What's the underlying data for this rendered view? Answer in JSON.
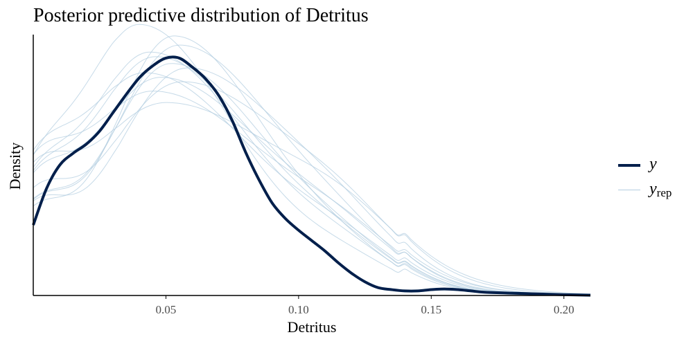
{
  "chart_data": {
    "type": "line",
    "title": "Posterior predictive distribution of Detritus",
    "xlabel": "Detritus",
    "ylabel": "Density",
    "xlim": [
      0.0,
      0.21
    ],
    "ylim": [
      0,
      20
    ],
    "x_ticks": [
      0.05,
      0.1,
      0.15,
      0.2
    ],
    "x_tick_labels": [
      "0.05",
      "0.10",
      "0.15",
      "0.20"
    ],
    "y_ticks_shown": false,
    "grid": false,
    "legend_position": "right",
    "legend": [
      {
        "label": "y",
        "role": "observed"
      },
      {
        "label": "y",
        "subscript": "rep",
        "role": "replicated"
      }
    ],
    "colors": {
      "y": "#011f4b",
      "yrep": "#b3cde0",
      "axis": "#000000",
      "tick_text": "#4d4d4d"
    },
    "series": [
      {
        "name": "y",
        "x": [
          0.0,
          0.005,
          0.01,
          0.015,
          0.02,
          0.025,
          0.03,
          0.035,
          0.04,
          0.045,
          0.05,
          0.055,
          0.06,
          0.065,
          0.07,
          0.075,
          0.08,
          0.085,
          0.09,
          0.095,
          0.1,
          0.105,
          0.11,
          0.115,
          0.12,
          0.125,
          0.13,
          0.135,
          0.14,
          0.145,
          0.15,
          0.155,
          0.16,
          0.165,
          0.17,
          0.18,
          0.19,
          0.2,
          0.21
        ],
        "values": [
          5.4,
          8.2,
          10.0,
          10.9,
          11.6,
          12.6,
          14.0,
          15.4,
          16.7,
          17.6,
          18.2,
          18.2,
          17.5,
          16.6,
          15.3,
          13.4,
          11.0,
          8.9,
          7.1,
          5.9,
          5.0,
          4.2,
          3.4,
          2.5,
          1.7,
          1.05,
          0.6,
          0.45,
          0.35,
          0.35,
          0.45,
          0.5,
          0.45,
          0.35,
          0.25,
          0.18,
          0.12,
          0.06,
          0.02
        ]
      }
    ],
    "replicates": [
      {
        "peak_x": 0.044,
        "scale": 1.06,
        "width": 0.031,
        "tail": 1.0
      },
      {
        "peak_x": 0.048,
        "scale": 0.95,
        "width": 0.034,
        "tail": 1.08
      },
      {
        "peak_x": 0.052,
        "scale": 1.01,
        "width": 0.03,
        "tail": 0.95
      },
      {
        "peak_x": 0.056,
        "scale": 0.93,
        "width": 0.036,
        "tail": 1.12
      },
      {
        "peak_x": 0.045,
        "scale": 0.89,
        "width": 0.037,
        "tail": 1.02
      },
      {
        "peak_x": 0.053,
        "scale": 1.13,
        "width": 0.028,
        "tail": 0.92
      },
      {
        "peak_x": 0.04,
        "scale": 1.18,
        "width": 0.029,
        "tail": 0.98
      },
      {
        "peak_x": 0.05,
        "scale": 0.84,
        "width": 0.04,
        "tail": 1.15
      },
      {
        "peak_x": 0.058,
        "scale": 0.99,
        "width": 0.033,
        "tail": 1.04
      },
      {
        "peak_x": 0.046,
        "scale": 1.04,
        "width": 0.032,
        "tail": 0.9
      },
      {
        "peak_x": 0.042,
        "scale": 0.97,
        "width": 0.034,
        "tail": 1.06
      },
      {
        "peak_x": 0.055,
        "scale": 1.09,
        "width": 0.031,
        "tail": 1.0
      }
    ]
  }
}
